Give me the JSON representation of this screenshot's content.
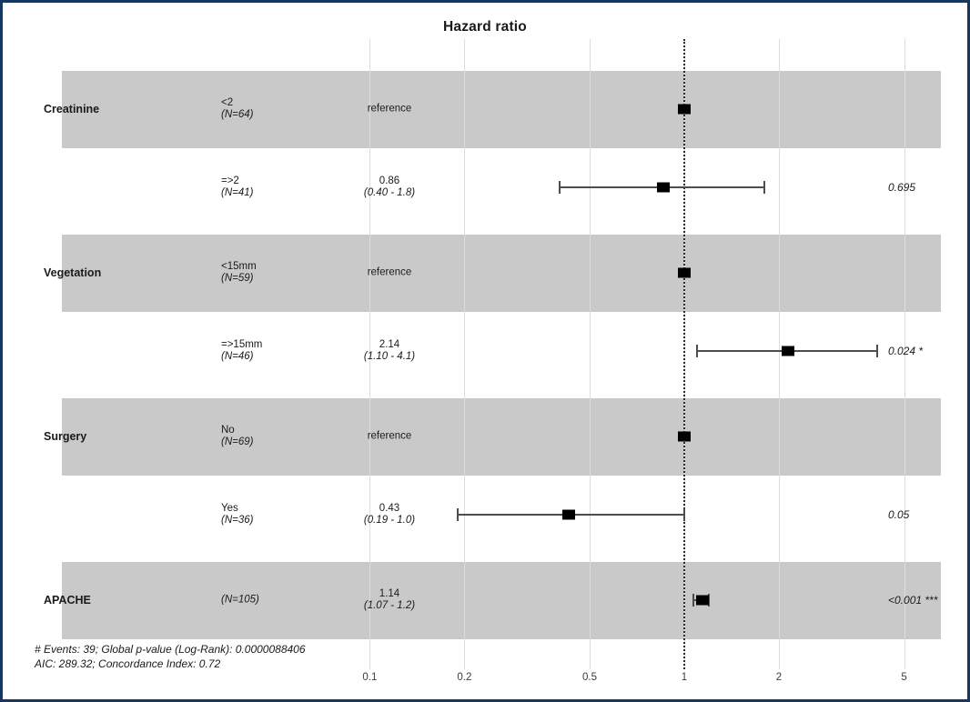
{
  "title": "Hazard ratio",
  "colors": {
    "frame_border": "#17375e",
    "band": "#c9c9c9",
    "gridline": "#dddddd",
    "reference_line": "#2b2b2b",
    "whisker": "#4d4d4d",
    "marker": "#000000",
    "text": "#1a1a1a"
  },
  "chart_data": {
    "type": "forest-plot",
    "title": "Hazard ratio",
    "x_axis": {
      "scale": "log10",
      "ticks": [
        0.1,
        0.2,
        0.5,
        1,
        2,
        5
      ],
      "tick_labels": [
        "0.1",
        "0.2",
        "0.5",
        "1",
        "2",
        "5"
      ],
      "reference_line": 1,
      "grid": true
    },
    "rows": [
      {
        "variable": "Creatinine",
        "level": "<2",
        "n_label": "(N=64)",
        "estimate_label": "reference",
        "ci_label": "",
        "hr": 1.0,
        "ci_low": null,
        "ci_high": null,
        "p_label": "",
        "shaded": true,
        "reference": true
      },
      {
        "variable": "",
        "level": "=>2",
        "n_label": "(N=41)",
        "estimate_label": "0.86",
        "ci_label": "(0.40 - 1.8)",
        "hr": 0.86,
        "ci_low": 0.4,
        "ci_high": 1.8,
        "p_label": "0.695",
        "shaded": false,
        "reference": false
      },
      {
        "variable": "Vegetation",
        "level": "<15mm",
        "n_label": "(N=59)",
        "estimate_label": "reference",
        "ci_label": "",
        "hr": 1.0,
        "ci_low": null,
        "ci_high": null,
        "p_label": "",
        "shaded": true,
        "reference": true
      },
      {
        "variable": "",
        "level": "=>15mm",
        "n_label": "(N=46)",
        "estimate_label": "2.14",
        "ci_label": "(1.10 - 4.1)",
        "hr": 2.14,
        "ci_low": 1.1,
        "ci_high": 4.1,
        "p_label": "0.024 *",
        "shaded": false,
        "reference": false
      },
      {
        "variable": "Surgery",
        "level": "No",
        "n_label": "(N=69)",
        "estimate_label": "reference",
        "ci_label": "",
        "hr": 1.0,
        "ci_low": null,
        "ci_high": null,
        "p_label": "",
        "shaded": true,
        "reference": true
      },
      {
        "variable": "",
        "level": "Yes",
        "n_label": "(N=36)",
        "estimate_label": "0.43",
        "ci_label": "(0.19 - 1.0)",
        "hr": 0.43,
        "ci_low": 0.19,
        "ci_high": 1.0,
        "p_label": "0.05",
        "shaded": false,
        "reference": false
      },
      {
        "variable": "APACHE",
        "level": "",
        "n_label": "(N=105)",
        "estimate_label": "1.14",
        "ci_label": "(1.07 - 1.2)",
        "hr": 1.14,
        "ci_low": 1.07,
        "ci_high": 1.2,
        "p_label": "<0.001 ***",
        "shaded": true,
        "reference": false
      }
    ],
    "footer_lines": [
      "# Events: 39; Global p-value (Log-Rank): 0.0000088406",
      "AIC: 289.32; Concordance Index: 0.72"
    ]
  }
}
